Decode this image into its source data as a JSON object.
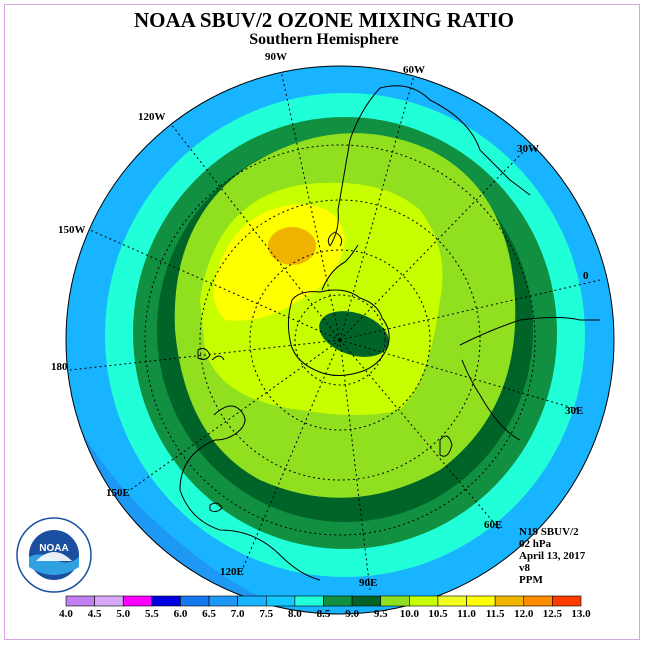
{
  "title": "NOAA SBUV/2 OZONE MIXING RATIO",
  "subtitle": "Southern Hemisphere",
  "longitude_labels": [
    "90W",
    "60W",
    "30W",
    "0",
    "30E",
    "60E",
    "90E",
    "120E",
    "150E",
    "180",
    "150W",
    "120W"
  ],
  "info": {
    "satellite": "N19 SBUV/2",
    "pressure": "02 hPa",
    "date": "April 13, 2017",
    "version": "v8",
    "units": "PPM"
  },
  "legend": {
    "labels": [
      "4.0",
      "4.5",
      "5.0",
      "5.5",
      "6.0",
      "6.5",
      "7.0",
      "7.5",
      "8.0",
      "8.5",
      "9.0",
      "9.5",
      "10.0",
      "10.5",
      "11.0",
      "11.5",
      "12.0",
      "12.5",
      "13.0"
    ],
    "colors": [
      "#c080f0",
      "#d8a8f8",
      "#ff00ff",
      "#0000e0",
      "#1478f0",
      "#1e98f5",
      "#18b4ff",
      "#14c8ff",
      "#20ffd8",
      "#109040",
      "#006428",
      "#90e020",
      "#c8ff00",
      "#f0ff20",
      "#ffff00",
      "#f0b400",
      "#ff8c00",
      "#ff3c00",
      "#8b5a3c",
      "#8b5a3c"
    ]
  },
  "logo": {
    "text": "NOAA",
    "ring_text": "NATIONAL OCEANIC AND ATMOSPHERIC ADMINISTRATION · U.S. DEPARTMENT OF COMMERCE"
  },
  "map_colors": {
    "outer": "#18b4ff",
    "blue": "#1e98f5",
    "cyan": "#20ffd8",
    "green": "#109040",
    "darkgreen": "#006428",
    "lightgreen": "#90e020",
    "yellowgreen": "#c8ff00",
    "yellow": "#ffff00",
    "orange": "#f0b400",
    "polar": "#006428"
  }
}
